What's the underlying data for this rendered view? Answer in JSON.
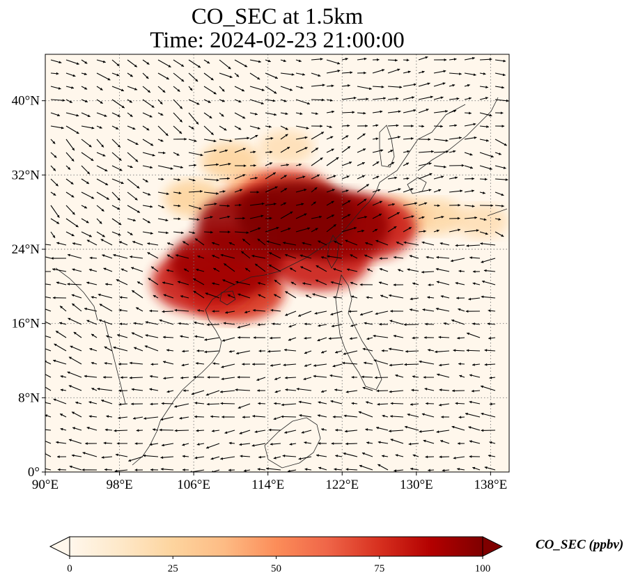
{
  "title": {
    "line1": "CO_SEC at 1.5km",
    "line2": "Time: 2024-02-23 21:00:00"
  },
  "map": {
    "projection": "PlateCarree",
    "lon_range": [
      90,
      140
    ],
    "lat_range": [
      0,
      45
    ],
    "lon_ticks": [
      {
        "value": 90,
        "label": "90°E"
      },
      {
        "value": 98,
        "label": "98°E"
      },
      {
        "value": 106,
        "label": "106°E"
      },
      {
        "value": 114,
        "label": "114°E"
      },
      {
        "value": 122,
        "label": "122°E"
      },
      {
        "value": 130,
        "label": "130°E"
      },
      {
        "value": 138,
        "label": "138°E"
      }
    ],
    "lat_ticks": [
      {
        "value": 0,
        "label": "0°"
      },
      {
        "value": 8,
        "label": "8°N"
      },
      {
        "value": 16,
        "label": "16°N"
      },
      {
        "value": 24,
        "label": "24°N"
      },
      {
        "value": 32,
        "label": "32°N"
      },
      {
        "value": 40,
        "label": "40°N"
      }
    ],
    "gridlines": "dotted",
    "overlay": "wind-vectors",
    "plumes": [
      {
        "lon": 112.5,
        "lat": 26.5,
        "value": 95
      },
      {
        "lon": 117.0,
        "lat": 27.5,
        "value": 100
      },
      {
        "lon": 121.0,
        "lat": 26.5,
        "value": 95
      },
      {
        "lon": 124.5,
        "lat": 26.3,
        "value": 80
      },
      {
        "lon": 109.5,
        "lat": 22.5,
        "value": 92
      },
      {
        "lon": 107.0,
        "lat": 20.5,
        "value": 80
      },
      {
        "lon": 110.5,
        "lat": 19.5,
        "value": 75
      },
      {
        "lon": 119.5,
        "lat": 23.0,
        "value": 80
      },
      {
        "lon": 116.0,
        "lat": 29.5,
        "value": 70
      },
      {
        "lon": 110.0,
        "lat": 33.5,
        "value": 25
      },
      {
        "lon": 116.0,
        "lat": 35.0,
        "value": 18
      },
      {
        "lon": 106.0,
        "lat": 29.5,
        "value": 25
      },
      {
        "lon": 128.0,
        "lat": 27.5,
        "value": 30
      },
      {
        "lon": 132.0,
        "lat": 27.5,
        "value": 22
      },
      {
        "lon": 137.0,
        "lat": 27.0,
        "value": 18
      },
      {
        "lon": 113.0,
        "lat": 30.0,
        "value": 40
      }
    ]
  },
  "colorbar": {
    "colormap": "OrRd",
    "colors": [
      "#fff7ec",
      "#fee8c8",
      "#fdd49e",
      "#fdbb84",
      "#fc8d59",
      "#ef6548",
      "#d7301f",
      "#b30000",
      "#7f0000"
    ],
    "min": 0,
    "max": 100,
    "extend": "both",
    "ticks": [
      {
        "value": 0,
        "label": "0"
      },
      {
        "value": 25,
        "label": "25"
      },
      {
        "value": 50,
        "label": "50"
      },
      {
        "value": 75,
        "label": "75"
      },
      {
        "value": 100,
        "label": "100"
      }
    ],
    "label": "CO_SEC (ppbv)"
  }
}
